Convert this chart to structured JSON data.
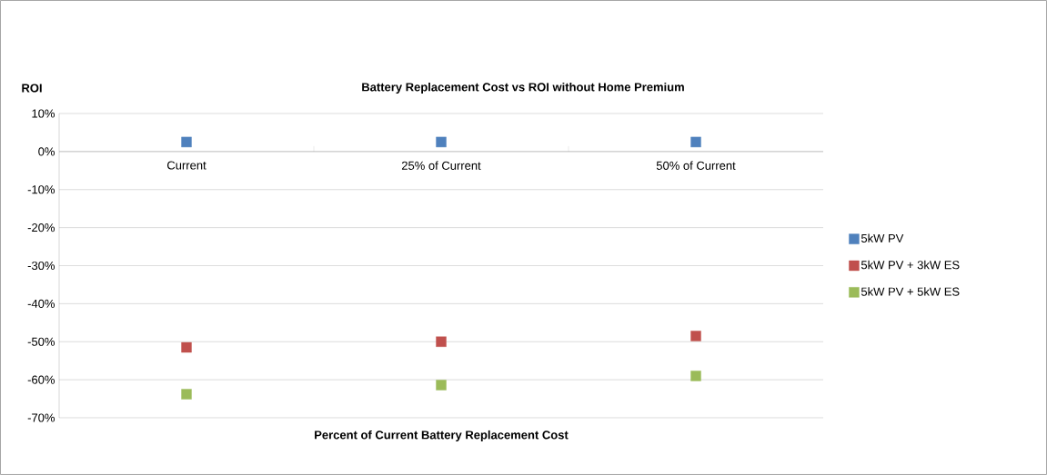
{
  "chart_data": {
    "type": "scatter",
    "title": "Battery Replacement Cost vs ROI without Home Premium",
    "xlabel": "Percent of Current Battery Replacement Cost",
    "ylabel": "ROI",
    "categories": [
      "Current",
      "25% of Current",
      "50% of Current"
    ],
    "series": [
      {
        "name": "5kW PV",
        "color": "#4f81bd",
        "values": [
          2.5,
          2.5,
          2.5
        ]
      },
      {
        "name": "5kW PV + 3kW ES",
        "color": "#c0504d",
        "values": [
          -51.5,
          -50,
          -48.5
        ]
      },
      {
        "name": "5kW PV + 5kW ES",
        "color": "#9bbb59",
        "values": [
          -63.8,
          -61.4,
          -59
        ]
      }
    ],
    "ylim": [
      -70,
      10
    ],
    "yticks": [
      {
        "value": -70,
        "label": "-70%"
      },
      {
        "value": -60,
        "label": "-60%"
      },
      {
        "value": -50,
        "label": "-50%"
      },
      {
        "value": -40,
        "label": "-40%"
      },
      {
        "value": -30,
        "label": "-30%"
      },
      {
        "value": -20,
        "label": "-20%"
      },
      {
        "value": -10,
        "label": "-10%"
      },
      {
        "value": 0,
        "label": "0%"
      },
      {
        "value": 10,
        "label": "10%"
      }
    ],
    "grid": "y",
    "legend": "right",
    "marker": "square"
  }
}
